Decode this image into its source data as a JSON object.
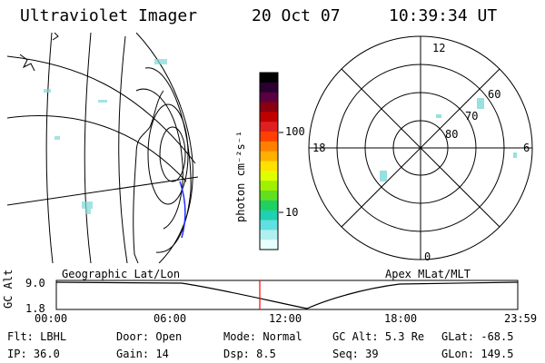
{
  "header": {
    "instrument": "Ultraviolet Imager",
    "date": "20 Oct 07",
    "time": "10:39:34 UT"
  },
  "geo_panel": {
    "label": "Geographic Lat/Lon"
  },
  "polar_panel": {
    "label": "Apex MLat/MLT",
    "mlt_labels": [
      "12",
      "18",
      "6",
      "0"
    ],
    "lat_labels": [
      "60",
      "70",
      "80"
    ]
  },
  "colorbar": {
    "unit_label": "photon cm⁻²s⁻¹",
    "ticks": [
      "100",
      "10"
    ],
    "colors": [
      "#000000",
      "#2a0030",
      "#5a0040",
      "#8a0010",
      "#c00000",
      "#e02020",
      "#ff4000",
      "#ff8000",
      "#ffb000",
      "#ffe000",
      "#e0ff00",
      "#a0f000",
      "#60e020",
      "#20d060",
      "#20d0b0",
      "#60e0e0",
      "#b0f0f0",
      "#e8ffff"
    ]
  },
  "altitude_plot": {
    "ylabel": "GC Alt",
    "yticks": [
      "9.0",
      "1.8"
    ],
    "xticks": [
      "00:00",
      "06:00",
      "12:00",
      "18:00",
      "23:59"
    ],
    "marker_color": "#ff0000"
  },
  "info": {
    "row1": [
      {
        "key": "Flt:",
        "value": "LBHL"
      },
      {
        "key": "Door:",
        "value": "Open"
      },
      {
        "key": "Mode:",
        "value": "Normal"
      },
      {
        "key": "GC Alt:",
        "value": "5.3 Re"
      },
      {
        "key": "GLat:",
        "value": "-68.5"
      }
    ],
    "row2": [
      {
        "key": "IP:",
        "value": "36.0"
      },
      {
        "key": "Gain:",
        "value": "14"
      },
      {
        "key": "Dsp:",
        "value": "8.5"
      },
      {
        "key": "Seq:",
        "value": "39"
      },
      {
        "key": "GLon:",
        "value": "149.5"
      }
    ]
  }
}
